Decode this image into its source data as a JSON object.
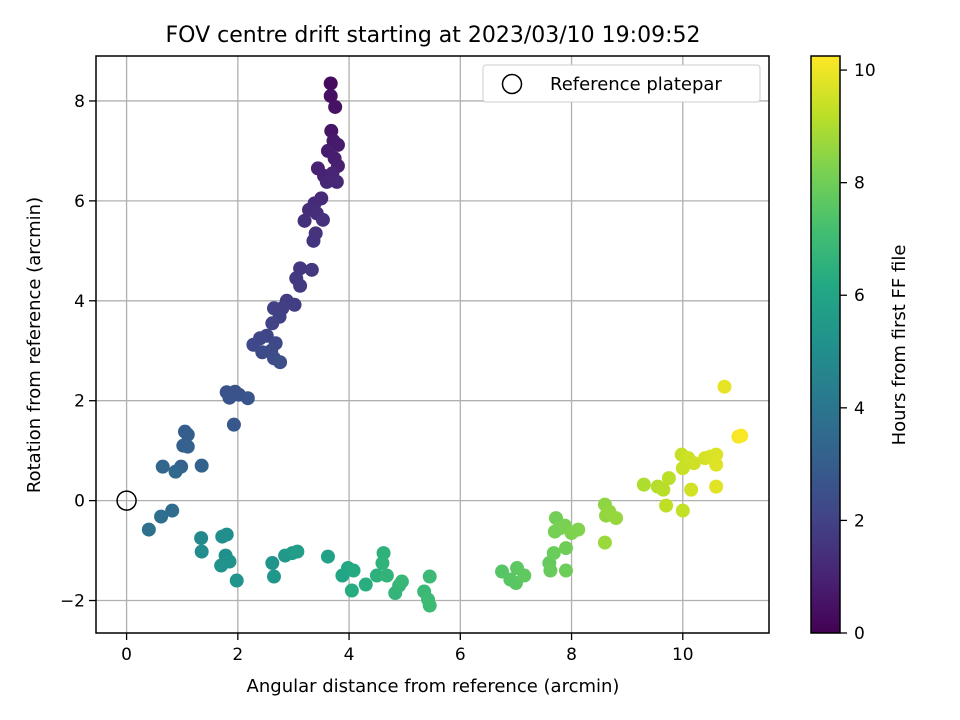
{
  "chart_data": {
    "type": "scatter",
    "title": "FOV centre drift starting at 2023/03/10 19:09:52",
    "xlabel": "Angular distance from reference (arcmin)",
    "ylabel": "Rotation from reference (arcmin)",
    "xlim": [
      -0.55,
      11.55
    ],
    "ylim": [
      -2.65,
      8.9
    ],
    "xticks": [
      0,
      2,
      4,
      6,
      8,
      10
    ],
    "xtick_labels": [
      "0",
      "2",
      "4",
      "6",
      "8",
      "10"
    ],
    "yticks": [
      -2,
      0,
      2,
      4,
      6,
      8
    ],
    "ytick_labels": [
      "−2",
      "0",
      "2",
      "4",
      "6",
      "8"
    ],
    "grid": true,
    "legend": {
      "position": "upper-right",
      "entries": [
        "Reference platepar"
      ]
    },
    "reference_point": {
      "x": 0,
      "y": 0,
      "label": "Reference platepar"
    },
    "colorbar": {
      "label": "Hours from first FF file",
      "colormap": "viridis",
      "range": [
        0,
        10.25
      ],
      "ticks": [
        0,
        2,
        4,
        6,
        8,
        10
      ],
      "tick_labels": [
        "0",
        "2",
        "4",
        "6",
        "8",
        "10"
      ]
    },
    "points": [
      {
        "x": 3.67,
        "y": 8.35,
        "c": 0.3
      },
      {
        "x": 3.67,
        "y": 8.1,
        "c": 0.4
      },
      {
        "x": 3.75,
        "y": 7.88,
        "c": 0.5
      },
      {
        "x": 3.68,
        "y": 7.4,
        "c": 0.6
      },
      {
        "x": 3.72,
        "y": 7.2,
        "c": 0.7
      },
      {
        "x": 3.8,
        "y": 7.12,
        "c": 0.75
      },
      {
        "x": 3.62,
        "y": 7.0,
        "c": 0.8
      },
      {
        "x": 3.74,
        "y": 6.85,
        "c": 0.85
      },
      {
        "x": 3.8,
        "y": 6.7,
        "c": 0.9
      },
      {
        "x": 3.44,
        "y": 6.65,
        "c": 0.95
      },
      {
        "x": 3.55,
        "y": 6.5,
        "c": 1.0
      },
      {
        "x": 3.7,
        "y": 6.55,
        "c": 1.05
      },
      {
        "x": 3.6,
        "y": 6.38,
        "c": 1.1
      },
      {
        "x": 3.78,
        "y": 6.38,
        "c": 1.15
      },
      {
        "x": 3.5,
        "y": 6.05,
        "c": 1.2
      },
      {
        "x": 3.38,
        "y": 5.95,
        "c": 1.25
      },
      {
        "x": 3.28,
        "y": 5.82,
        "c": 1.3
      },
      {
        "x": 3.42,
        "y": 5.75,
        "c": 1.35
      },
      {
        "x": 3.2,
        "y": 5.6,
        "c": 1.4
      },
      {
        "x": 3.53,
        "y": 5.62,
        "c": 1.45
      },
      {
        "x": 3.4,
        "y": 5.35,
        "c": 1.5
      },
      {
        "x": 3.36,
        "y": 5.2,
        "c": 1.55
      },
      {
        "x": 3.12,
        "y": 4.65,
        "c": 1.6
      },
      {
        "x": 3.33,
        "y": 4.62,
        "c": 1.65
      },
      {
        "x": 3.05,
        "y": 4.45,
        "c": 1.7
      },
      {
        "x": 3.12,
        "y": 4.3,
        "c": 1.75
      },
      {
        "x": 2.88,
        "y": 4.0,
        "c": 1.8
      },
      {
        "x": 3.02,
        "y": 3.92,
        "c": 1.85
      },
      {
        "x": 2.8,
        "y": 3.85,
        "c": 1.9
      },
      {
        "x": 2.65,
        "y": 3.85,
        "c": 1.95
      },
      {
        "x": 2.75,
        "y": 3.68,
        "c": 2.0
      },
      {
        "x": 2.62,
        "y": 3.55,
        "c": 2.05
      },
      {
        "x": 2.52,
        "y": 3.3,
        "c": 2.1
      },
      {
        "x": 2.4,
        "y": 3.25,
        "c": 2.15
      },
      {
        "x": 2.28,
        "y": 3.12,
        "c": 2.2
      },
      {
        "x": 2.68,
        "y": 3.15,
        "c": 2.25
      },
      {
        "x": 2.6,
        "y": 3.0,
        "c": 2.3
      },
      {
        "x": 2.44,
        "y": 2.97,
        "c": 2.35
      },
      {
        "x": 2.65,
        "y": 2.85,
        "c": 2.4
      },
      {
        "x": 2.76,
        "y": 2.77,
        "c": 2.45
      },
      {
        "x": 1.8,
        "y": 2.17,
        "c": 2.5
      },
      {
        "x": 1.95,
        "y": 2.18,
        "c": 2.55
      },
      {
        "x": 2.02,
        "y": 2.12,
        "c": 2.6
      },
      {
        "x": 1.85,
        "y": 2.06,
        "c": 2.65
      },
      {
        "x": 2.18,
        "y": 2.05,
        "c": 2.7
      },
      {
        "x": 1.93,
        "y": 1.52,
        "c": 2.8
      },
      {
        "x": 1.05,
        "y": 1.38,
        "c": 3.0
      },
      {
        "x": 1.1,
        "y": 1.32,
        "c": 3.05
      },
      {
        "x": 1.02,
        "y": 1.1,
        "c": 3.1
      },
      {
        "x": 1.1,
        "y": 1.08,
        "c": 3.15
      },
      {
        "x": 0.98,
        "y": 0.68,
        "c": 3.2
      },
      {
        "x": 1.35,
        "y": 0.7,
        "c": 3.25
      },
      {
        "x": 0.65,
        "y": 0.68,
        "c": 3.35
      },
      {
        "x": 0.88,
        "y": 0.58,
        "c": 3.45
      },
      {
        "x": 0.82,
        "y": -0.2,
        "c": 3.6
      },
      {
        "x": 0.62,
        "y": -0.32,
        "c": 3.7
      },
      {
        "x": 0.4,
        "y": -0.58,
        "c": 3.8
      },
      {
        "x": 1.34,
        "y": -0.75,
        "c": 4.8
      },
      {
        "x": 1.35,
        "y": -1.02,
        "c": 4.9
      },
      {
        "x": 1.8,
        "y": -0.68,
        "c": 5.0
      },
      {
        "x": 1.72,
        "y": -0.72,
        "c": 5.05
      },
      {
        "x": 1.78,
        "y": -1.1,
        "c": 5.1
      },
      {
        "x": 1.85,
        "y": -1.22,
        "c": 5.15
      },
      {
        "x": 1.7,
        "y": -1.3,
        "c": 5.2
      },
      {
        "x": 1.98,
        "y": -1.6,
        "c": 5.25
      },
      {
        "x": 2.62,
        "y": -1.25,
        "c": 5.3
      },
      {
        "x": 2.65,
        "y": -1.52,
        "c": 5.35
      },
      {
        "x": 2.85,
        "y": -1.1,
        "c": 5.45
      },
      {
        "x": 2.98,
        "y": -1.05,
        "c": 5.55
      },
      {
        "x": 3.07,
        "y": -1.02,
        "c": 5.65
      },
      {
        "x": 3.62,
        "y": -1.12,
        "c": 5.85
      },
      {
        "x": 3.88,
        "y": -1.5,
        "c": 6.0
      },
      {
        "x": 3.98,
        "y": -1.35,
        "c": 6.1
      },
      {
        "x": 4.08,
        "y": -1.4,
        "c": 6.2
      },
      {
        "x": 4.05,
        "y": -1.8,
        "c": 6.3
      },
      {
        "x": 4.3,
        "y": -1.68,
        "c": 6.4
      },
      {
        "x": 4.5,
        "y": -1.5,
        "c": 6.5
      },
      {
        "x": 4.62,
        "y": -1.05,
        "c": 6.55
      },
      {
        "x": 4.6,
        "y": -1.25,
        "c": 6.6
      },
      {
        "x": 4.68,
        "y": -1.5,
        "c": 6.65
      },
      {
        "x": 4.83,
        "y": -1.85,
        "c": 6.7
      },
      {
        "x": 4.9,
        "y": -1.7,
        "c": 6.75
      },
      {
        "x": 4.95,
        "y": -1.62,
        "c": 6.8
      },
      {
        "x": 5.35,
        "y": -1.82,
        "c": 6.85
      },
      {
        "x": 5.45,
        "y": -1.52,
        "c": 6.9
      },
      {
        "x": 5.42,
        "y": -1.98,
        "c": 6.95
      },
      {
        "x": 5.45,
        "y": -2.1,
        "c": 7.0
      },
      {
        "x": 6.75,
        "y": -1.42,
        "c": 7.5
      },
      {
        "x": 6.9,
        "y": -1.58,
        "c": 7.55
      },
      {
        "x": 7.0,
        "y": -1.65,
        "c": 7.6
      },
      {
        "x": 7.02,
        "y": -1.35,
        "c": 7.65
      },
      {
        "x": 7.15,
        "y": -1.5,
        "c": 7.7
      },
      {
        "x": 7.6,
        "y": -1.25,
        "c": 7.8
      },
      {
        "x": 7.62,
        "y": -1.4,
        "c": 7.85
      },
      {
        "x": 7.68,
        "y": -1.05,
        "c": 7.9
      },
      {
        "x": 7.9,
        "y": -1.4,
        "c": 7.95
      },
      {
        "x": 7.9,
        "y": -0.95,
        "c": 8.0
      },
      {
        "x": 7.72,
        "y": -0.35,
        "c": 8.05
      },
      {
        "x": 7.7,
        "y": -0.62,
        "c": 8.1
      },
      {
        "x": 7.8,
        "y": -0.55,
        "c": 8.15
      },
      {
        "x": 7.88,
        "y": -0.5,
        "c": 8.2
      },
      {
        "x": 8.0,
        "y": -0.65,
        "c": 8.25
      },
      {
        "x": 8.12,
        "y": -0.58,
        "c": 8.3
      },
      {
        "x": 8.6,
        "y": -0.08,
        "c": 8.5
      },
      {
        "x": 8.62,
        "y": -0.3,
        "c": 8.55
      },
      {
        "x": 8.68,
        "y": -0.22,
        "c": 8.6
      },
      {
        "x": 8.8,
        "y": -0.35,
        "c": 8.65
      },
      {
        "x": 8.6,
        "y": -0.84,
        "c": 8.7
      },
      {
        "x": 9.3,
        "y": 0.32,
        "c": 9.0
      },
      {
        "x": 9.55,
        "y": 0.28,
        "c": 9.1
      },
      {
        "x": 9.65,
        "y": 0.22,
        "c": 9.15
      },
      {
        "x": 9.75,
        "y": 0.45,
        "c": 9.2
      },
      {
        "x": 9.7,
        "y": -0.1,
        "c": 9.25
      },
      {
        "x": 10.0,
        "y": -0.2,
        "c": 9.3
      },
      {
        "x": 9.98,
        "y": 0.92,
        "c": 9.35
      },
      {
        "x": 10.0,
        "y": 0.65,
        "c": 9.4
      },
      {
        "x": 10.1,
        "y": 0.85,
        "c": 9.45
      },
      {
        "x": 10.2,
        "y": 0.75,
        "c": 9.5
      },
      {
        "x": 10.15,
        "y": 0.22,
        "c": 9.55
      },
      {
        "x": 10.4,
        "y": 0.85,
        "c": 9.6
      },
      {
        "x": 10.5,
        "y": 0.88,
        "c": 9.65
      },
      {
        "x": 10.6,
        "y": 0.92,
        "c": 9.7
      },
      {
        "x": 10.6,
        "y": 0.72,
        "c": 9.75
      },
      {
        "x": 10.6,
        "y": 0.28,
        "c": 9.8
      },
      {
        "x": 10.75,
        "y": 2.28,
        "c": 9.9
      },
      {
        "x": 11.0,
        "y": 1.28,
        "c": 10.1
      },
      {
        "x": 11.05,
        "y": 1.3,
        "c": 10.2
      }
    ]
  }
}
